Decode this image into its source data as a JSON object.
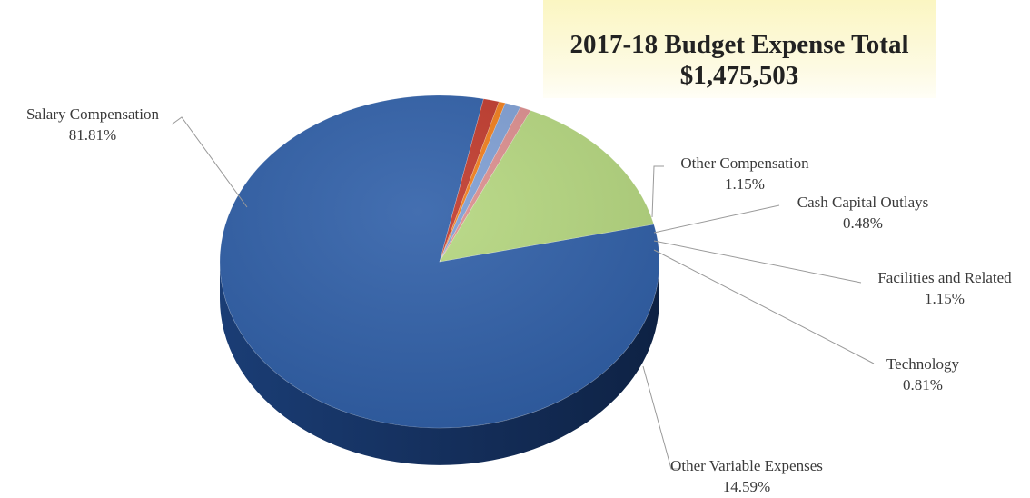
{
  "chart_data": {
    "type": "pie",
    "title": "2017-18 Budget Expense Total",
    "subtitle": "$1,475,503",
    "slices": [
      {
        "label": "Salary Compensation",
        "value": 81.81,
        "value_label": "81.81%",
        "color": "#2f5fa8"
      },
      {
        "label": "Other Compensation",
        "value": 1.15,
        "value_label": "1.15%",
        "color": "#c0392b"
      },
      {
        "label": "Cash Capital Outlays",
        "value": 0.48,
        "value_label": "0.48%",
        "color": "#f07d1a"
      },
      {
        "label": "Facilities and Related",
        "value": 1.15,
        "value_label": "1.15%",
        "color": "#7f9fd4"
      },
      {
        "label": "Technology",
        "value": 0.81,
        "value_label": "0.81%",
        "color": "#dc8e8e"
      },
      {
        "label": "Other Variable Expenses",
        "value": 14.59,
        "value_label": "14.59%",
        "color": "#b5d77f"
      }
    ]
  }
}
